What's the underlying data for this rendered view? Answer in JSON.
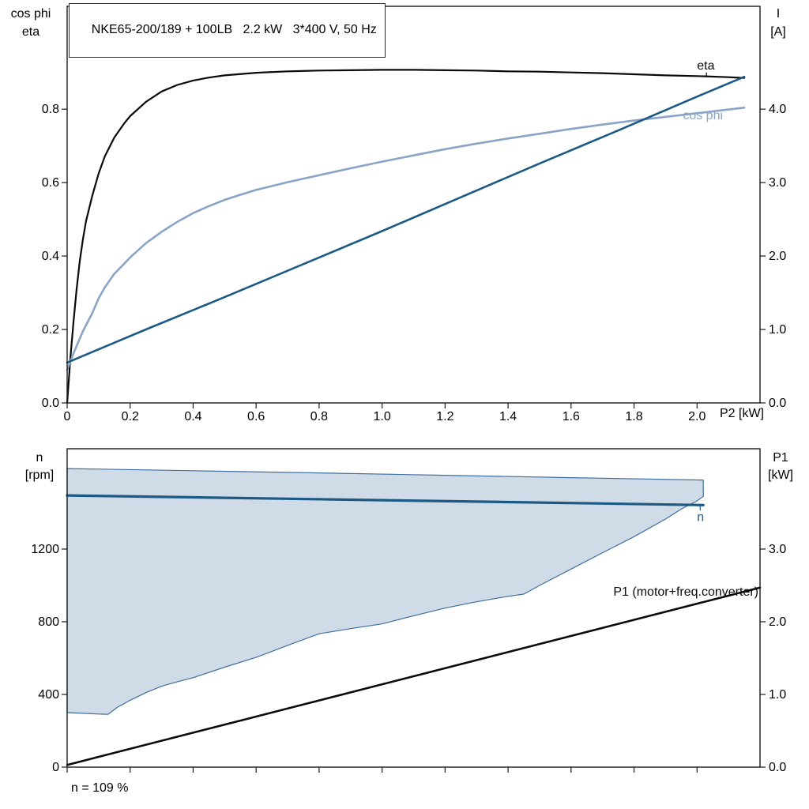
{
  "colors": {
    "black": "#0a0a0a",
    "dark_blue": "#1c5a84",
    "light_blue": "#8aa4c6",
    "band_fill": "#cfdce8",
    "band_stroke": "#3f6e9e",
    "axis": "#1a1a1a"
  },
  "chart_data": [
    {
      "type": "line",
      "title": "NKE65-200/189 + 100LB   2.2 kW   3*400 V, 50 Hz",
      "xlabel": "P2 [kW]",
      "ylabel_left": [
        "cos phi",
        "eta"
      ],
      "ylabel_right": [
        "I",
        "[A]"
      ],
      "xlim": [
        0,
        2.2
      ],
      "ylim_left": [
        0,
        1.08
      ],
      "ylim_right": [
        0,
        5.4
      ],
      "grid": false,
      "legend": "inline-labels",
      "xticks": [
        {
          "v": 0,
          "label": "0"
        },
        {
          "v": 0.2,
          "label": "0.2"
        },
        {
          "v": 0.4,
          "label": "0.4"
        },
        {
          "v": 0.6,
          "label": "0.6"
        },
        {
          "v": 0.8,
          "label": "0.8"
        },
        {
          "v": 1.0,
          "label": "1.0"
        },
        {
          "v": 1.2,
          "label": "1.2"
        },
        {
          "v": 1.4,
          "label": "1.4"
        },
        {
          "v": 1.6,
          "label": "1.6"
        },
        {
          "v": 1.8,
          "label": "1.8"
        },
        {
          "v": 2.0,
          "label": "2.0"
        }
      ],
      "yticks_left": [
        {
          "v": 0,
          "label": "0.0"
        },
        {
          "v": 0.2,
          "label": "0.2"
        },
        {
          "v": 0.4,
          "label": "0.4"
        },
        {
          "v": 0.6,
          "label": "0.6"
        },
        {
          "v": 0.8,
          "label": "0.8"
        }
      ],
      "yticks_right": [
        {
          "v": 0,
          "label": "0.0"
        },
        {
          "v": 1,
          "label": "1.0"
        },
        {
          "v": 2,
          "label": "2.0"
        },
        {
          "v": 3,
          "label": "3.0"
        },
        {
          "v": 4,
          "label": "4.0"
        }
      ],
      "series": [
        {
          "id": "eta",
          "name": "eta",
          "axis": "left",
          "color": "#0a0a0a",
          "width": 2.2,
          "points": [
            [
              0,
              0
            ],
            [
              0.01,
              0.12
            ],
            [
              0.02,
              0.22
            ],
            [
              0.03,
              0.31
            ],
            [
              0.04,
              0.385
            ],
            [
              0.05,
              0.445
            ],
            [
              0.06,
              0.495
            ],
            [
              0.08,
              0.565
            ],
            [
              0.1,
              0.625
            ],
            [
              0.12,
              0.672
            ],
            [
              0.15,
              0.723
            ],
            [
              0.18,
              0.76
            ],
            [
              0.2,
              0.781
            ],
            [
              0.25,
              0.82
            ],
            [
              0.3,
              0.848
            ],
            [
              0.35,
              0.866
            ],
            [
              0.4,
              0.878
            ],
            [
              0.45,
              0.886
            ],
            [
              0.5,
              0.892
            ],
            [
              0.6,
              0.899
            ],
            [
              0.7,
              0.903
            ],
            [
              0.8,
              0.905
            ],
            [
              0.9,
              0.906
            ],
            [
              1.0,
              0.907
            ],
            [
              1.1,
              0.907
            ],
            [
              1.2,
              0.906
            ],
            [
              1.3,
              0.905
            ],
            [
              1.4,
              0.903
            ],
            [
              1.5,
              0.902
            ],
            [
              1.6,
              0.9
            ],
            [
              1.7,
              0.898
            ],
            [
              1.8,
              0.895
            ],
            [
              1.9,
              0.892
            ],
            [
              2.0,
              0.89
            ],
            [
              2.1,
              0.887
            ],
            [
              2.15,
              0.885
            ]
          ]
        },
        {
          "id": "cos-phi",
          "name": "cos phi",
          "axis": "left",
          "color": "#8aa4c6",
          "width": 2.6,
          "points": [
            [
              0,
              0.09
            ],
            [
              0.02,
              0.135
            ],
            [
              0.05,
              0.195
            ],
            [
              0.08,
              0.245
            ],
            [
              0.1,
              0.285
            ],
            [
              0.12,
              0.315
            ],
            [
              0.15,
              0.352
            ],
            [
              0.18,
              0.378
            ],
            [
              0.2,
              0.396
            ],
            [
              0.25,
              0.435
            ],
            [
              0.3,
              0.466
            ],
            [
              0.35,
              0.493
            ],
            [
              0.4,
              0.517
            ],
            [
              0.45,
              0.536
            ],
            [
              0.5,
              0.553
            ],
            [
              0.55,
              0.567
            ],
            [
              0.6,
              0.58
            ],
            [
              0.7,
              0.601
            ],
            [
              0.8,
              0.62
            ],
            [
              0.9,
              0.639
            ],
            [
              1.0,
              0.657
            ],
            [
              1.1,
              0.674
            ],
            [
              1.2,
              0.691
            ],
            [
              1.3,
              0.706
            ],
            [
              1.4,
              0.72
            ],
            [
              1.5,
              0.733
            ],
            [
              1.6,
              0.746
            ],
            [
              1.7,
              0.758
            ],
            [
              1.8,
              0.769
            ],
            [
              1.9,
              0.779
            ],
            [
              2.0,
              0.789
            ],
            [
              2.1,
              0.799
            ],
            [
              2.15,
              0.804
            ]
          ]
        },
        {
          "id": "current",
          "name": "I",
          "axis": "right",
          "color": "#1c5a84",
          "width": 2.6,
          "points": [
            [
              0,
              0.55
            ],
            [
              0.25,
              1.0
            ],
            [
              0.5,
              1.44
            ],
            [
              0.75,
              1.89
            ],
            [
              1.0,
              2.34
            ],
            [
              1.25,
              2.8
            ],
            [
              1.5,
              3.26
            ],
            [
              1.75,
              3.71
            ],
            [
              2.0,
              4.17
            ],
            [
              2.15,
              4.44
            ]
          ]
        }
      ],
      "annotations": [
        {
          "id": "eta-label",
          "text": "eta",
          "x": 2.0,
          "y": 0.908,
          "axis": "left",
          "anchor": "start",
          "color": "#0a0a0a",
          "leader": {
            "x": 2.03,
            "y1": 0.9,
            "y2": 0.889
          }
        },
        {
          "id": "cos-phi-label",
          "text": "cos phi",
          "x": 1.955,
          "y": 0.772,
          "axis": "left",
          "anchor": "start",
          "color": "#8aa4c6"
        }
      ]
    },
    {
      "type": "line",
      "title": "",
      "footnote": "n = 109 %",
      "xlabel": "",
      "ylabel_left": [
        "n",
        "[rpm]"
      ],
      "ylabel_right": [
        "P1",
        "[kW]"
      ],
      "xlim": [
        0,
        2.2
      ],
      "ylim_left": [
        0,
        1752
      ],
      "ylim_right": [
        0,
        4.38
      ],
      "grid": false,
      "xticks": [
        {
          "v": 0,
          "label": ""
        },
        {
          "v": 0.2,
          "label": ""
        },
        {
          "v": 0.4,
          "label": ""
        },
        {
          "v": 0.6,
          "label": ""
        },
        {
          "v": 0.8,
          "label": ""
        },
        {
          "v": 1.0,
          "label": ""
        },
        {
          "v": 1.2,
          "label": ""
        },
        {
          "v": 1.4,
          "label": ""
        },
        {
          "v": 1.6,
          "label": ""
        },
        {
          "v": 1.8,
          "label": ""
        },
        {
          "v": 2.0,
          "label": ""
        }
      ],
      "yticks_left": [
        {
          "v": 0,
          "label": "0"
        },
        {
          "v": 400,
          "label": "400"
        },
        {
          "v": 800,
          "label": "800"
        },
        {
          "v": 1200,
          "label": "1200"
        }
      ],
      "yticks_right": [
        {
          "v": 0,
          "label": "0.0"
        },
        {
          "v": 1,
          "label": "1.0"
        },
        {
          "v": 2,
          "label": "2.0"
        },
        {
          "v": 3,
          "label": "3.0"
        }
      ],
      "band": {
        "id": "speed-range",
        "name": "speed operating range",
        "fill": "#cfdce8",
        "stroke": "#3f6e9e",
        "upper": [
          [
            0,
            1643
          ],
          [
            0.4,
            1631
          ],
          [
            0.8,
            1619
          ],
          [
            1.2,
            1606
          ],
          [
            1.6,
            1593
          ],
          [
            2.02,
            1580
          ]
        ],
        "lower": [
          [
            0,
            300
          ],
          [
            0.05,
            296
          ],
          [
            0.1,
            292
          ],
          [
            0.13,
            291
          ],
          [
            0.16,
            330
          ],
          [
            0.2,
            368
          ],
          [
            0.25,
            410
          ],
          [
            0.3,
            445
          ],
          [
            0.35,
            470
          ],
          [
            0.4,
            492
          ],
          [
            0.5,
            550
          ],
          [
            0.6,
            604
          ],
          [
            0.7,
            670
          ],
          [
            0.8,
            734
          ],
          [
            0.9,
            762
          ],
          [
            1.0,
            788
          ],
          [
            1.1,
            833
          ],
          [
            1.2,
            875
          ],
          [
            1.3,
            910
          ],
          [
            1.4,
            940
          ],
          [
            1.45,
            952
          ],
          [
            1.5,
            1000
          ],
          [
            1.6,
            1090
          ],
          [
            1.7,
            1180
          ],
          [
            1.8,
            1268
          ],
          [
            1.9,
            1365
          ],
          [
            1.95,
            1420
          ],
          [
            2.0,
            1465
          ],
          [
            2.02,
            1490
          ]
        ]
      },
      "series": [
        {
          "id": "speed",
          "name": "n",
          "axis": "left",
          "color": "#1c5a84",
          "width": 3.2,
          "points": [
            [
              0,
              1495
            ],
            [
              0.5,
              1482
            ],
            [
              1.0,
              1469
            ],
            [
              1.5,
              1456
            ],
            [
              2.02,
              1442
            ]
          ]
        },
        {
          "id": "p1",
          "name": "P1 (motor+freq.converter)",
          "axis": "right",
          "color": "#0a0a0a",
          "width": 2.6,
          "points": [
            [
              0,
              0.03
            ],
            [
              0.55,
              0.64
            ],
            [
              1.1,
              1.25
            ],
            [
              1.65,
              1.86
            ],
            [
              2.2,
              2.47
            ]
          ]
        }
      ],
      "annotations": [
        {
          "id": "n-label",
          "text": "n",
          "x": 2.0,
          "y": 1355,
          "axis": "left",
          "anchor": "start",
          "color": "#1c5a84",
          "leader": {
            "x": 2.01,
            "y1": 1412,
            "y2": 1440
          }
        },
        {
          "id": "p1-label",
          "text": "P1 (motor+freq.converter)",
          "x": 2.195,
          "y": 2.36,
          "axis": "right",
          "anchor": "end",
          "color": "#0a0a0a"
        }
      ]
    }
  ]
}
